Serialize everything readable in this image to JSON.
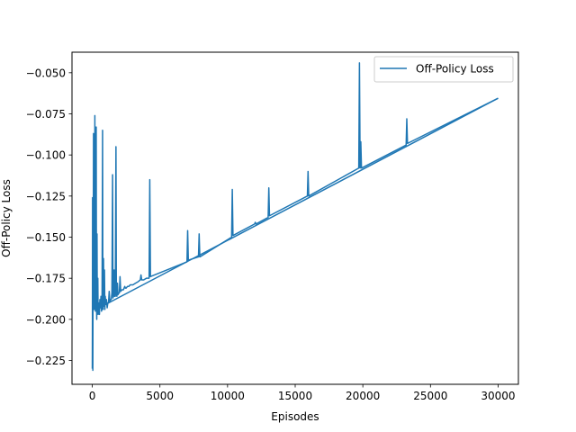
{
  "chart_data": {
    "type": "line",
    "xlabel": "Episodes",
    "ylabel": "Off-Policy Loss",
    "xlim": [
      -1500,
      31500
    ],
    "ylim": [
      -0.2395,
      -0.0375
    ],
    "xticks": [
      0,
      5000,
      10000,
      15000,
      20000,
      25000,
      30000
    ],
    "xtick_labels": [
      "0",
      "5000",
      "10000",
      "15000",
      "20000",
      "25000",
      "30000"
    ],
    "yticks": [
      -0.225,
      -0.2,
      -0.175,
      -0.15,
      -0.125,
      -0.1,
      -0.075,
      -0.05
    ],
    "ytick_labels": [
      "−0.225",
      "−0.200",
      "−0.175",
      "−0.150",
      "−0.125",
      "−0.100",
      "−0.075",
      "−0.050"
    ],
    "grid": false,
    "legend": {
      "position": "top-right",
      "entries": [
        "Off-Policy Loss"
      ]
    },
    "series": [
      {
        "name": "Off-Policy Loss",
        "color": "#1f77b4",
        "baseline": {
          "x_start": 1200,
          "x_end": 30000,
          "y_start": -0.19,
          "y_end": -0.0655
        },
        "points": [
          [
            0,
            -0.23
          ],
          [
            10,
            -0.2
          ],
          [
            20,
            -0.126
          ],
          [
            30,
            -0.18
          ],
          [
            40,
            -0.231
          ],
          [
            50,
            -0.196
          ],
          [
            70,
            -0.175
          ],
          [
            90,
            -0.087
          ],
          [
            110,
            -0.15
          ],
          [
            130,
            -0.194
          ],
          [
            150,
            -0.1
          ],
          [
            170,
            -0.17
          ],
          [
            190,
            -0.076
          ],
          [
            210,
            -0.16
          ],
          [
            230,
            -0.195
          ],
          [
            250,
            -0.12
          ],
          [
            270,
            -0.186
          ],
          [
            290,
            -0.083
          ],
          [
            310,
            -0.19
          ],
          [
            330,
            -0.2
          ],
          [
            350,
            -0.148
          ],
          [
            370,
            -0.195
          ],
          [
            390,
            -0.185
          ],
          [
            410,
            -0.175
          ],
          [
            430,
            -0.197
          ],
          [
            450,
            -0.193
          ],
          [
            470,
            -0.196
          ],
          [
            500,
            -0.19
          ],
          [
            530,
            -0.197
          ],
          [
            560,
            -0.188
          ],
          [
            600,
            -0.193
          ],
          [
            640,
            -0.186
          ],
          [
            680,
            -0.195
          ],
          [
            720,
            -0.193
          ],
          [
            760,
            -0.085
          ],
          [
            780,
            -0.19
          ],
          [
            800,
            -0.194
          ],
          [
            830,
            -0.163
          ],
          [
            860,
            -0.192
          ],
          [
            900,
            -0.17
          ],
          [
            930,
            -0.194
          ],
          [
            960,
            -0.186
          ],
          [
            1000,
            -0.191
          ],
          [
            1050,
            -0.188
          ],
          [
            1100,
            -0.193
          ],
          [
            1150,
            -0.19
          ],
          [
            1200,
            -0.19
          ],
          [
            1250,
            -0.183
          ],
          [
            1300,
            -0.189
          ],
          [
            1350,
            -0.188
          ],
          [
            1400,
            -0.188
          ],
          [
            1450,
            -0.184
          ],
          [
            1500,
            -0.112
          ],
          [
            1530,
            -0.187
          ],
          [
            1560,
            -0.186
          ],
          [
            1620,
            -0.17
          ],
          [
            1650,
            -0.186
          ],
          [
            1700,
            -0.186
          ],
          [
            1750,
            -0.095
          ],
          [
            1780,
            -0.185
          ],
          [
            1820,
            -0.186
          ],
          [
            1860,
            -0.178
          ],
          [
            1900,
            -0.185
          ],
          [
            1950,
            -0.184
          ],
          [
            2000,
            -0.184
          ],
          [
            2050,
            -0.174
          ],
          [
            2100,
            -0.183
          ],
          [
            2200,
            -0.182
          ],
          [
            2300,
            -0.182
          ],
          [
            2400,
            -0.18
          ],
          [
            2450,
            -0.181
          ],
          [
            2500,
            -0.181
          ],
          [
            2600,
            -0.18
          ],
          [
            2700,
            -0.18
          ],
          [
            2800,
            -0.179
          ],
          [
            2900,
            -0.179
          ],
          [
            3000,
            -0.179
          ],
          [
            3200,
            -0.178
          ],
          [
            3400,
            -0.177
          ],
          [
            3550,
            -0.176
          ],
          [
            3600,
            -0.173
          ],
          [
            3650,
            -0.176
          ],
          [
            3800,
            -0.176
          ],
          [
            4000,
            -0.175
          ],
          [
            4200,
            -0.175
          ],
          [
            4250,
            -0.115
          ],
          [
            4300,
            -0.174
          ],
          [
            7000,
            -0.165
          ],
          [
            7050,
            -0.146
          ],
          [
            7100,
            -0.164
          ],
          [
            7850,
            -0.162
          ],
          [
            7900,
            -0.148
          ],
          [
            7950,
            -0.162
          ],
          [
            10300,
            -0.15
          ],
          [
            10350,
            -0.121
          ],
          [
            10400,
            -0.149
          ],
          [
            12000,
            -0.142
          ],
          [
            12050,
            -0.141
          ],
          [
            12100,
            -0.142
          ],
          [
            13000,
            -0.138
          ],
          [
            13050,
            -0.12
          ],
          [
            13100,
            -0.137
          ],
          [
            15900,
            -0.125
          ],
          [
            15950,
            -0.11
          ],
          [
            16000,
            -0.125
          ],
          [
            19700,
            -0.108
          ],
          [
            19750,
            -0.044
          ],
          [
            19800,
            -0.108
          ],
          [
            19850,
            -0.092
          ],
          [
            19900,
            -0.108
          ],
          [
            23200,
            -0.094
          ],
          [
            23250,
            -0.078
          ],
          [
            23300,
            -0.093
          ],
          [
            30000,
            -0.0655
          ]
        ]
      }
    ]
  }
}
